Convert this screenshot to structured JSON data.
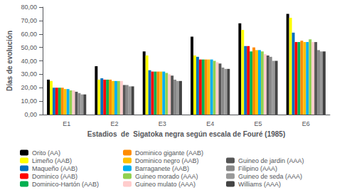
{
  "chart_data": {
    "type": "bar",
    "xlabel": "Estadios  de  Sigatoka negra según escala de Fouré (1985)",
    "ylabel": "Días de evolución",
    "categories": [
      "E1",
      "E2",
      "E3",
      "E4",
      "E5",
      "E6"
    ],
    "series": [
      {
        "name": "Orito (AA)",
        "color": "#000000",
        "values": [
          26,
          36,
          47,
          58,
          68,
          75
        ]
      },
      {
        "name": "Limeño (AAB)",
        "color": "#FFFF00",
        "values": [
          25,
          26,
          44,
          44,
          63,
          72
        ]
      },
      {
        "name": "Maqueño (AAB)",
        "color": "#0070C0",
        "values": [
          20,
          27,
          33,
          43,
          51,
          61
        ]
      },
      {
        "name": "Dominico (AAB)",
        "color": "#FF0000",
        "values": [
          20,
          26,
          32,
          41,
          51,
          54
        ]
      },
      {
        "name": "Dominico-Hartón (AAB)",
        "color": "#00B050",
        "values": [
          20,
          26,
          32,
          41,
          47,
          54
        ]
      },
      {
        "name": "Dominico gigante (AAB)",
        "color": "#FF8C00",
        "values": [
          20,
          26,
          32,
          41,
          50,
          55
        ]
      },
      {
        "name": "Dominico negro (AAB)",
        "color": "#FFC000",
        "values": [
          19,
          25,
          32,
          41,
          48,
          54
        ]
      },
      {
        "name": "Barraganete (AAB)",
        "color": "#00B0F0",
        "values": [
          19,
          25,
          32,
          41,
          48,
          54
        ]
      },
      {
        "name": "Guineo morado (AAA)",
        "color": "#92D050",
        "values": [
          18,
          25,
          31,
          40,
          47,
          56
        ]
      },
      {
        "name": "Guineo mulato (AAA)",
        "color": "#FFCCCC",
        "values": [
          18,
          25,
          30,
          39,
          45,
          54
        ]
      },
      {
        "name": "Guineo de jardin (AAA)",
        "color": "#555555",
        "values": [
          17,
          22,
          29,
          38,
          44,
          54
        ]
      },
      {
        "name": "Filipino (AAA)",
        "color": "#888888",
        "values": [
          16,
          22,
          26,
          35,
          43,
          48
        ]
      },
      {
        "name": "Guineo de seda (AAA)",
        "color": "#999999",
        "values": [
          15,
          21,
          25,
          34,
          40,
          47
        ]
      },
      {
        "name": "Williams (AAA)",
        "color": "#444444",
        "values": [
          15,
          21,
          25,
          34,
          40,
          47
        ]
      }
    ],
    "ylim": [
      0,
      80
    ],
    "yticks": [
      {
        "value": 0,
        "label": "0,00"
      },
      {
        "value": 10,
        "label": "10,00"
      },
      {
        "value": 20,
        "label": "20,00"
      },
      {
        "value": 30,
        "label": "30,00"
      },
      {
        "value": 40,
        "label": "40,00"
      },
      {
        "value": 50,
        "label": "50,00"
      },
      {
        "value": 60,
        "label": "60,00"
      },
      {
        "value": 70,
        "label": "70,00"
      },
      {
        "value": 80,
        "label": "80,00"
      }
    ],
    "grid": false,
    "legend": "bottom"
  }
}
